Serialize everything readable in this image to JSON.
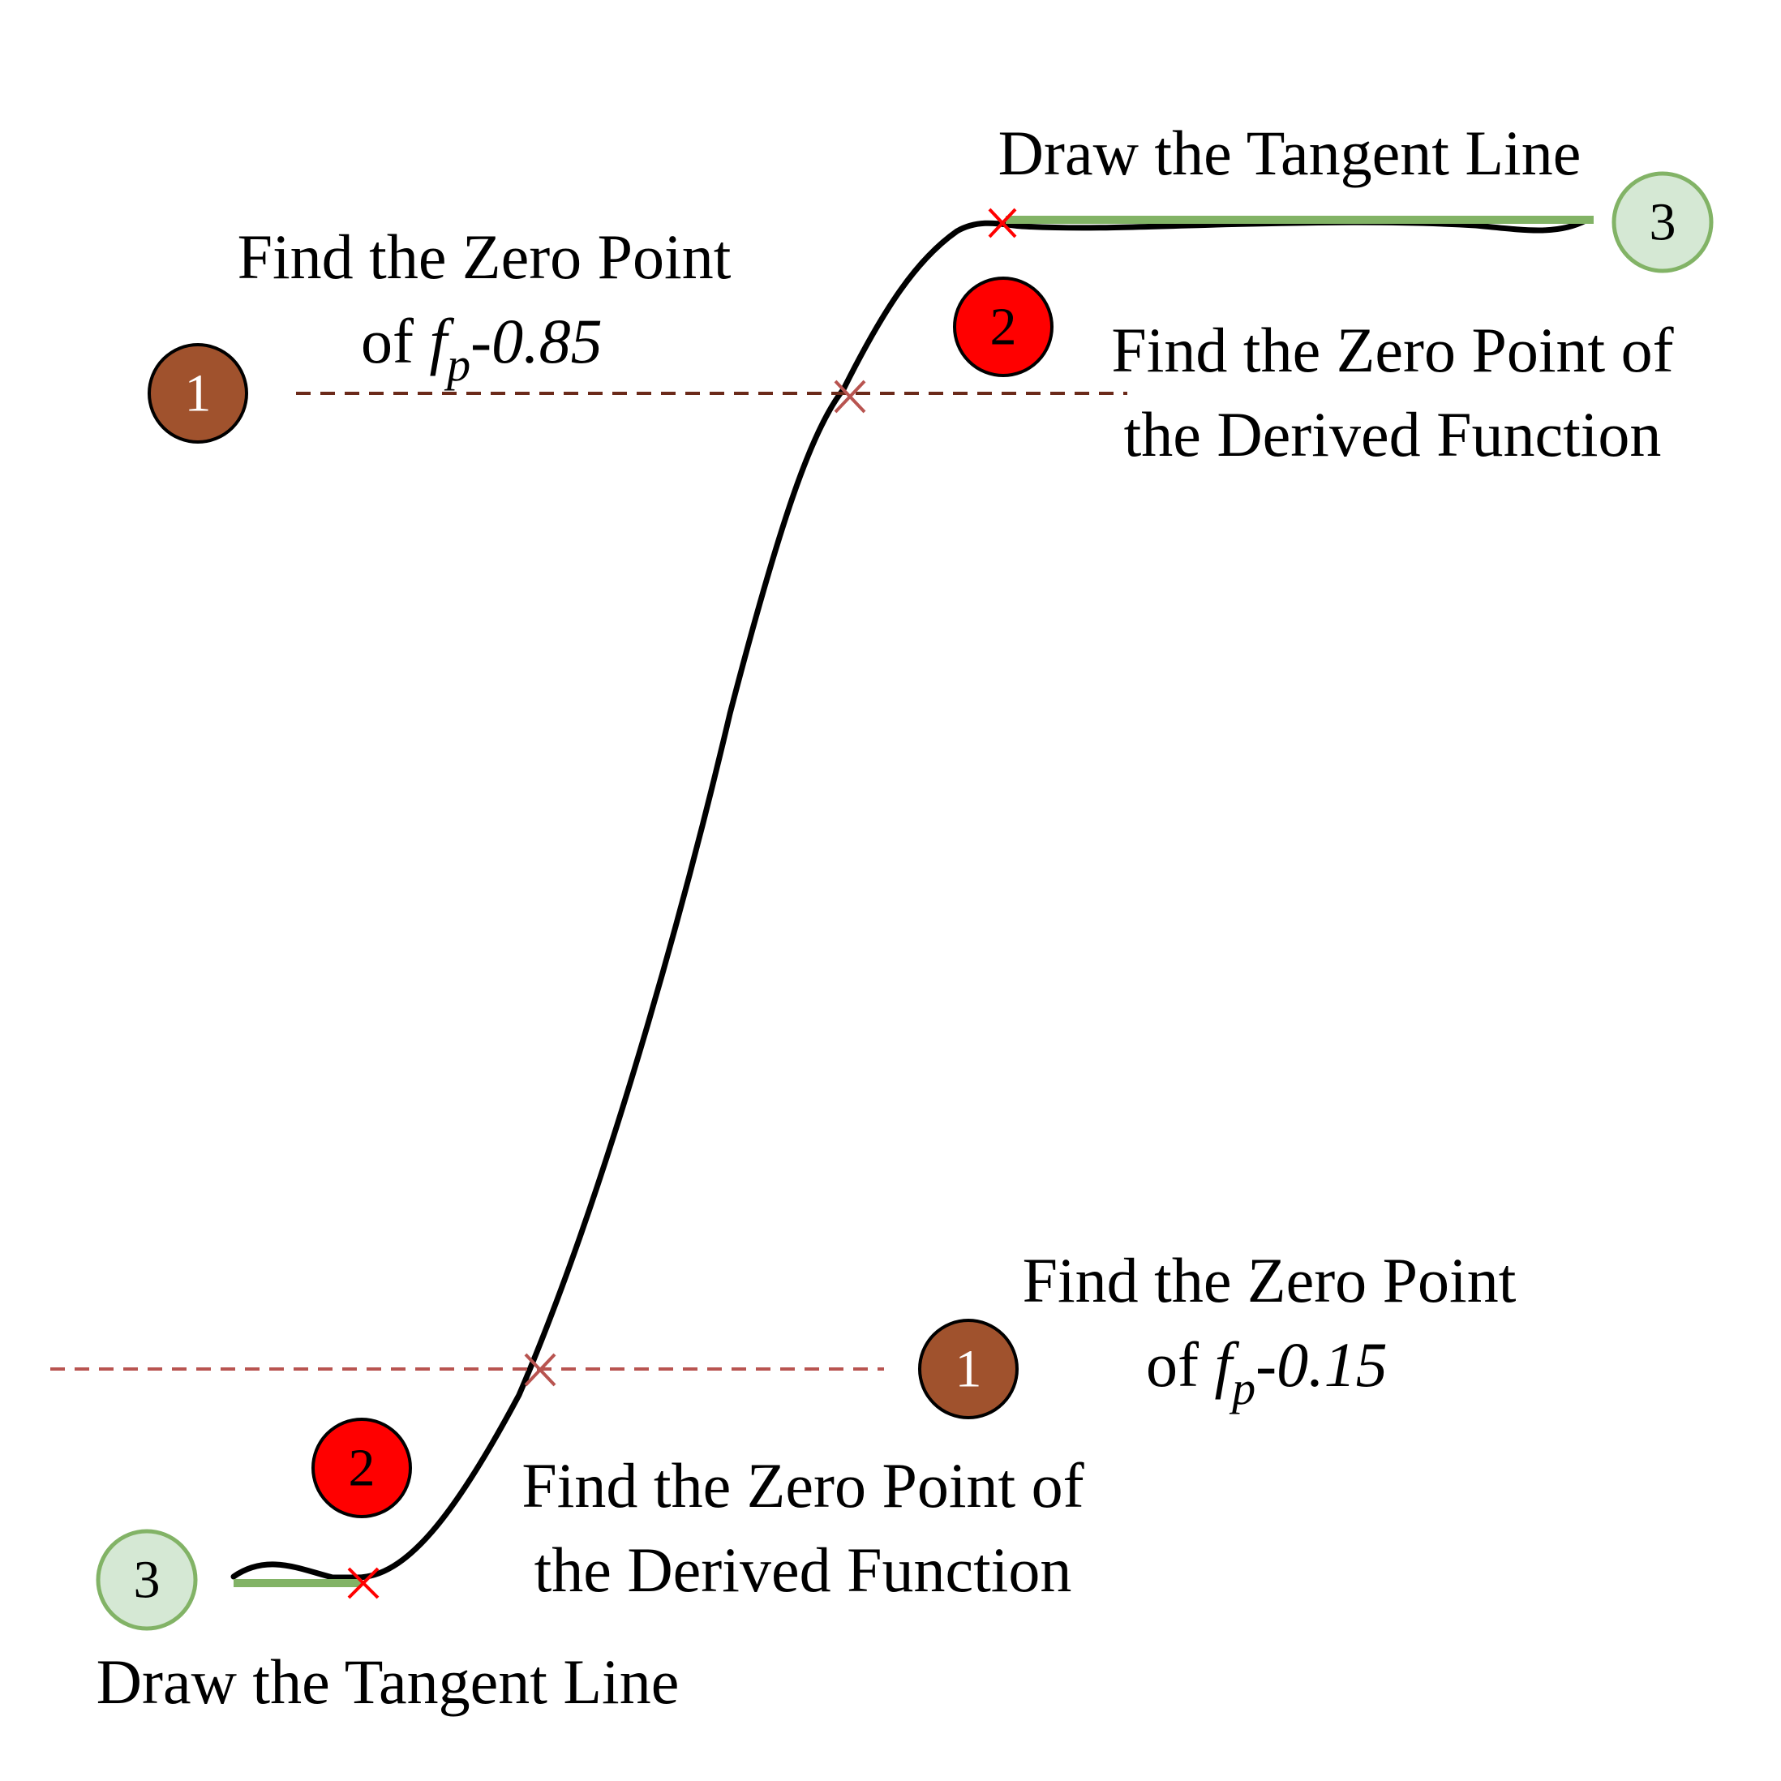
{
  "labels": {
    "tangent_top": "Draw the Tangent Line",
    "zero_085_line1": "Find the Zero Point",
    "zero_085_of": "of ",
    "zero_085_f": "f",
    "zero_085_sub": "p",
    "zero_085_val": "-0.85",
    "derived_top_line1": "Find the Zero Point of",
    "derived_top_line2": "the Derived Function",
    "zero_015_line1": "Find the Zero Point",
    "zero_015_of": "of ",
    "zero_015_f": "f",
    "zero_015_sub": "p",
    "zero_015_val": "-0.15",
    "derived_bottom_line1": "Find the Zero Point of",
    "derived_bottom_line2": "the Derived Function",
    "tangent_bottom": "Draw the Tangent Line"
  },
  "badges": {
    "step1_top": "1",
    "step2_top": "2",
    "step3_top": "3",
    "step1_bottom": "1",
    "step2_bottom": "2",
    "step3_bottom": "3"
  },
  "colors": {
    "curve": "#000000",
    "tangent": "#82b366",
    "marker_red": "#ff0000",
    "marker_brown": "#b85450",
    "dash_top": "#6b2a1a",
    "dash_bottom": "#b85450",
    "badge1_fill": "#a0522d",
    "badge2_fill": "#ff0000",
    "badge3_fill": "#d5e8d4",
    "badge3_stroke": "#82b366"
  }
}
